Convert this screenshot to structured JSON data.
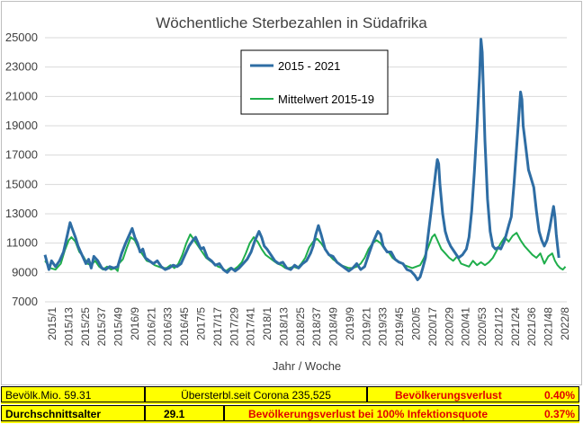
{
  "colors": {
    "series_main": "#2e6da4",
    "series_mean": "#1fae4b",
    "grid": "#d9d9d9",
    "info_bg": "#ffff00",
    "info_red": "#e00000"
  },
  "chart_data": {
    "type": "line",
    "title": "Wöchentliche Sterbezahlen in Südafrika",
    "xlabel": "Jahr / Woche",
    "ylabel": "",
    "ylim": [
      7000,
      25000
    ],
    "yticks": [
      7000,
      9000,
      11000,
      13000,
      15000,
      17000,
      19000,
      21000,
      23000,
      25000
    ],
    "xticks": [
      "2015/1",
      "2015/13",
      "2015/25",
      "2015/37",
      "2015/49",
      "2016/9",
      "2016/21",
      "2016/33",
      "2016/45",
      "2017/5",
      "2017/17",
      "2017/29",
      "2017/41",
      "2018/1",
      "2018/13",
      "2018/25",
      "2018/37",
      "2018/49",
      "2019/9",
      "2019/21",
      "2019/33",
      "2019/45",
      "2020/5",
      "2020/17",
      "2020/29",
      "2020/41",
      "2020/53",
      "2021/12",
      "2021/24",
      "2021/36",
      "2021/48",
      "2022/8"
    ],
    "grid": true,
    "legend_position": "top-center",
    "series": [
      {
        "name": "2015 - 2021",
        "points": [
          [
            0,
            10200
          ],
          [
            3,
            9200
          ],
          [
            5,
            9800
          ],
          [
            8,
            9400
          ],
          [
            11,
            9800
          ],
          [
            14,
            10400
          ],
          [
            17,
            11600
          ],
          [
            19,
            12400
          ],
          [
            21,
            11900
          ],
          [
            23,
            11400
          ],
          [
            25,
            10800
          ],
          [
            27,
            10400
          ],
          [
            29,
            10000
          ],
          [
            31,
            9600
          ],
          [
            33,
            9900
          ],
          [
            35,
            9300
          ],
          [
            37,
            10100
          ],
          [
            40,
            9800
          ],
          [
            43,
            9300
          ],
          [
            46,
            9200
          ],
          [
            49,
            9400
          ],
          [
            52,
            9300
          ],
          [
            55,
            9400
          ],
          [
            58,
            10300
          ],
          [
            61,
            11000
          ],
          [
            64,
            11600
          ],
          [
            66,
            12000
          ],
          [
            68,
            11400
          ],
          [
            70,
            11000
          ],
          [
            72,
            10400
          ],
          [
            74,
            10600
          ],
          [
            76,
            10000
          ],
          [
            79,
            9800
          ],
          [
            82,
            9600
          ],
          [
            85,
            9800
          ],
          [
            88,
            9400
          ],
          [
            91,
            9200
          ],
          [
            94,
            9300
          ],
          [
            97,
            9500
          ],
          [
            100,
            9400
          ],
          [
            103,
            9600
          ],
          [
            106,
            10200
          ],
          [
            109,
            10800
          ],
          [
            112,
            11200
          ],
          [
            114,
            11400
          ],
          [
            116,
            11000
          ],
          [
            118,
            10600
          ],
          [
            120,
            10700
          ],
          [
            123,
            10000
          ],
          [
            126,
            9800
          ],
          [
            129,
            9500
          ],
          [
            132,
            9600
          ],
          [
            135,
            9200
          ],
          [
            138,
            9000
          ],
          [
            141,
            9300
          ],
          [
            144,
            9100
          ],
          [
            147,
            9300
          ],
          [
            150,
            9600
          ],
          [
            153,
            9900
          ],
          [
            156,
            10400
          ],
          [
            159,
            11200
          ],
          [
            162,
            11800
          ],
          [
            164,
            11400
          ],
          [
            166,
            10800
          ],
          [
            168,
            10600
          ],
          [
            171,
            10200
          ],
          [
            174,
            9800
          ],
          [
            177,
            9600
          ],
          [
            180,
            9700
          ],
          [
            183,
            9300
          ],
          [
            186,
            9200
          ],
          [
            189,
            9500
          ],
          [
            192,
            9300
          ],
          [
            195,
            9600
          ],
          [
            198,
            9800
          ],
          [
            201,
            10300
          ],
          [
            203,
            10800
          ],
          [
            205,
            11600
          ],
          [
            207,
            12200
          ],
          [
            209,
            11600
          ],
          [
            212,
            10600
          ],
          [
            215,
            10200
          ],
          [
            218,
            10100
          ],
          [
            221,
            9700
          ],
          [
            224,
            9500
          ],
          [
            227,
            9300
          ],
          [
            230,
            9100
          ],
          [
            233,
            9300
          ],
          [
            236,
            9600
          ],
          [
            239,
            9200
          ],
          [
            242,
            9400
          ],
          [
            245,
            10200
          ],
          [
            248,
            11000
          ],
          [
            250,
            11400
          ],
          [
            252,
            11800
          ],
          [
            254,
            11600
          ],
          [
            256,
            10800
          ],
          [
            259,
            10400
          ],
          [
            262,
            10400
          ],
          [
            265,
            9900
          ],
          [
            268,
            9700
          ],
          [
            271,
            9600
          ],
          [
            274,
            9200
          ],
          [
            277,
            9100
          ],
          [
            280,
            8800
          ],
          [
            282,
            8500
          ],
          [
            284,
            8700
          ],
          [
            286,
            9300
          ],
          [
            288,
            10000
          ],
          [
            290,
            11500
          ],
          [
            292,
            13000
          ],
          [
            294,
            14500
          ],
          [
            296,
            16000
          ],
          [
            297,
            16700
          ],
          [
            298,
            16400
          ],
          [
            299,
            15000
          ],
          [
            301,
            13000
          ],
          [
            303,
            11800
          ],
          [
            305,
            11200
          ],
          [
            307,
            10800
          ],
          [
            310,
            10400
          ],
          [
            313,
            10000
          ],
          [
            316,
            10200
          ],
          [
            319,
            10600
          ],
          [
            321,
            11400
          ],
          [
            323,
            13200
          ],
          [
            325,
            15800
          ],
          [
            327,
            19000
          ],
          [
            329,
            22500
          ],
          [
            330,
            24900
          ],
          [
            331,
            24000
          ],
          [
            332,
            21000
          ],
          [
            333,
            18000
          ],
          [
            335,
            14000
          ],
          [
            337,
            11800
          ],
          [
            339,
            10800
          ],
          [
            341,
            10600
          ],
          [
            343,
            10700
          ],
          [
            345,
            10600
          ],
          [
            348,
            11200
          ],
          [
            351,
            12200
          ],
          [
            353,
            12800
          ],
          [
            355,
            15000
          ],
          [
            357,
            17500
          ],
          [
            359,
            20000
          ],
          [
            360,
            21300
          ],
          [
            361,
            20800
          ],
          [
            362,
            19000
          ],
          [
            364,
            17500
          ],
          [
            366,
            16000
          ],
          [
            368,
            15400
          ],
          [
            370,
            14800
          ],
          [
            372,
            13200
          ],
          [
            374,
            11800
          ],
          [
            376,
            11200
          ],
          [
            378,
            10800
          ],
          [
            380,
            11200
          ],
          [
            382,
            12000
          ],
          [
            384,
            13000
          ],
          [
            385,
            13500
          ],
          [
            386,
            12800
          ],
          [
            387,
            11600
          ],
          [
            388,
            10800
          ],
          [
            389,
            10000
          ]
        ]
      },
      {
        "name": "Mittelwert 2015-19",
        "points": [
          [
            0,
            9800
          ],
          [
            4,
            9300
          ],
          [
            8,
            9200
          ],
          [
            12,
            9600
          ],
          [
            15,
            10500
          ],
          [
            18,
            11200
          ],
          [
            20,
            11400
          ],
          [
            23,
            11100
          ],
          [
            26,
            10400
          ],
          [
            29,
            10100
          ],
          [
            32,
            9600
          ],
          [
            35,
            9500
          ],
          [
            38,
            9800
          ],
          [
            41,
            9400
          ],
          [
            44,
            9200
          ],
          [
            47,
            9400
          ],
          [
            50,
            9200
          ],
          [
            53,
            9300
          ],
          [
            55,
            9100
          ],
          [
            56,
            9600
          ],
          [
            59,
            9900
          ],
          [
            62,
            10700
          ],
          [
            65,
            11400
          ],
          [
            68,
            11200
          ],
          [
            71,
            10600
          ],
          [
            74,
            10200
          ],
          [
            77,
            9800
          ],
          [
            80,
            9700
          ],
          [
            83,
            9500
          ],
          [
            86,
            9400
          ],
          [
            89,
            9300
          ],
          [
            92,
            9300
          ],
          [
            95,
            9500
          ],
          [
            98,
            9300
          ],
          [
            101,
            9600
          ],
          [
            104,
            10200
          ],
          [
            107,
            11000
          ],
          [
            110,
            11600
          ],
          [
            113,
            11200
          ],
          [
            116,
            10800
          ],
          [
            119,
            10400
          ],
          [
            122,
            10000
          ],
          [
            125,
            9800
          ],
          [
            128,
            9600
          ],
          [
            131,
            9400
          ],
          [
            134,
            9300
          ],
          [
            137,
            9100
          ],
          [
            140,
            9300
          ],
          [
            143,
            9200
          ],
          [
            146,
            9400
          ],
          [
            149,
            9700
          ],
          [
            152,
            10300
          ],
          [
            155,
            11000
          ],
          [
            158,
            11400
          ],
          [
            161,
            11100
          ],
          [
            164,
            10600
          ],
          [
            167,
            10200
          ],
          [
            170,
            10000
          ],
          [
            173,
            9800
          ],
          [
            176,
            9600
          ],
          [
            179,
            9500
          ],
          [
            182,
            9300
          ],
          [
            185,
            9300
          ],
          [
            188,
            9400
          ],
          [
            191,
            9300
          ],
          [
            194,
            9600
          ],
          [
            197,
            10000
          ],
          [
            200,
            10700
          ],
          [
            203,
            11100
          ],
          [
            206,
            11300
          ],
          [
            209,
            11000
          ],
          [
            212,
            10600
          ],
          [
            215,
            10200
          ],
          [
            218,
            9900
          ],
          [
            221,
            9700
          ],
          [
            224,
            9500
          ],
          [
            227,
            9400
          ],
          [
            230,
            9300
          ],
          [
            233,
            9300
          ],
          [
            236,
            9400
          ],
          [
            239,
            9600
          ],
          [
            242,
            10000
          ],
          [
            245,
            10600
          ],
          [
            248,
            11000
          ],
          [
            251,
            11200
          ],
          [
            254,
            11000
          ],
          [
            257,
            10600
          ],
          [
            260,
            10400
          ],
          [
            263,
            10000
          ],
          [
            266,
            9800
          ],
          [
            269,
            9700
          ],
          [
            272,
            9500
          ],
          [
            275,
            9400
          ],
          [
            278,
            9300
          ],
          [
            281,
            9400
          ],
          [
            284,
            9500
          ],
          [
            287,
            10000
          ],
          [
            290,
            10700
          ],
          [
            293,
            11400
          ],
          [
            295,
            11600
          ],
          [
            297,
            11200
          ],
          [
            300,
            10600
          ],
          [
            303,
            10300
          ],
          [
            306,
            10000
          ],
          [
            309,
            9800
          ],
          [
            312,
            10100
          ],
          [
            315,
            9600
          ],
          [
            318,
            9500
          ],
          [
            321,
            9400
          ],
          [
            324,
            9800
          ],
          [
            327,
            9500
          ],
          [
            330,
            9700
          ],
          [
            333,
            9500
          ],
          [
            336,
            9700
          ],
          [
            339,
            10000
          ],
          [
            342,
            10500
          ],
          [
            345,
            11000
          ],
          [
            348,
            11400
          ],
          [
            351,
            11100
          ],
          [
            354,
            11500
          ],
          [
            357,
            11700
          ],
          [
            360,
            11200
          ],
          [
            363,
            10800
          ],
          [
            366,
            10500
          ],
          [
            369,
            10200
          ],
          [
            372,
            10000
          ],
          [
            375,
            10300
          ],
          [
            378,
            9600
          ],
          [
            381,
            10100
          ],
          [
            384,
            10300
          ],
          [
            386,
            9800
          ],
          [
            388,
            9500
          ],
          [
            390,
            9300
          ],
          [
            392,
            9200
          ],
          [
            394,
            9400
          ]
        ]
      }
    ]
  },
  "info": {
    "row1": {
      "pop_label": "Bevölk.Mio.",
      "pop_value": "59.31",
      "excess_label": "Übersterbl.seit Corona",
      "excess_value": "235,525",
      "loss_label": "Bevölkerungsverlust",
      "loss_value": "0.40%"
    },
    "row2": {
      "age_label": "Durchschnittsalter",
      "age_value": "29.1",
      "loss100_label": "Bevölkerungsverlust bei 100% Infektionsquote",
      "loss100_value": "0.37%"
    }
  }
}
